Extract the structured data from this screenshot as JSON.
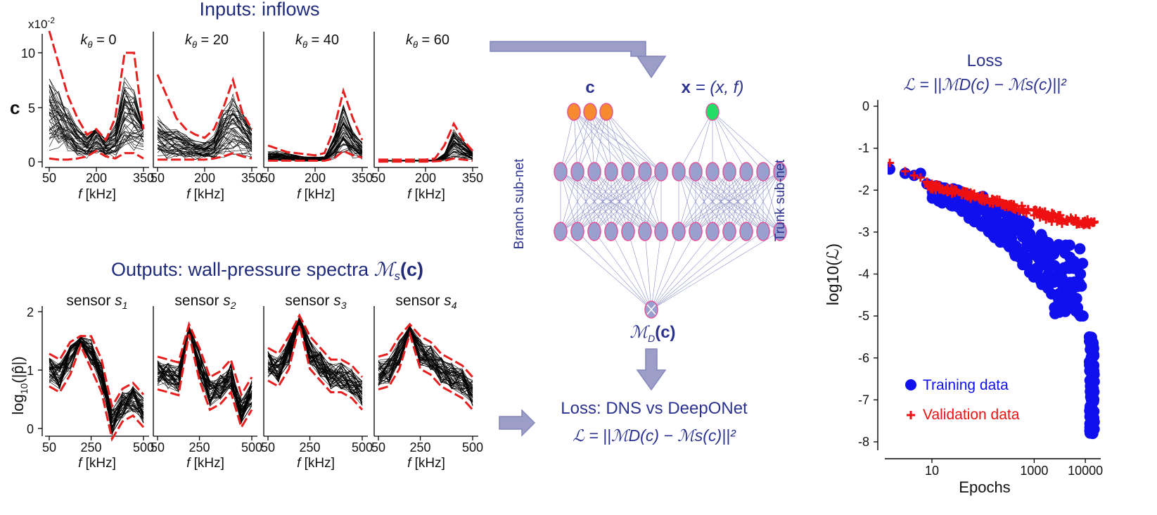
{
  "inputs": {
    "title": "Inputs: inflows",
    "scale_label": "x10",
    "scale_exp": "-2",
    "ylabel": "c",
    "ytick_labels": [
      "0",
      "5",
      "10"
    ],
    "xtick_labels": [
      "50",
      "200",
      "350"
    ],
    "xlabel_var": "f",
    "xlabel_unit": " [kHz]",
    "panels": [
      {
        "k_var": "k",
        "k_sub": "θ",
        "k_val": " = 0"
      },
      {
        "k_var": "k",
        "k_sub": "θ",
        "k_val": " = 20"
      },
      {
        "k_var": "k",
        "k_sub": "θ",
        "k_val": " = 40"
      },
      {
        "k_var": "k",
        "k_sub": "θ",
        "k_val": " = 60"
      }
    ]
  },
  "outputs": {
    "title": "Outputs: wall-pressure spectra ",
    "title_math_M": "ℳ",
    "title_math_sub": "s",
    "title_math_arg": "(c)",
    "ylabel_pre": "log",
    "ylabel_sub": "10",
    "ylabel_arg": "(|p̂|)",
    "ytick_labels": [
      "0",
      "1",
      "2"
    ],
    "xtick_labels": [
      "50",
      "250",
      "500"
    ],
    "xlabel_var": "f",
    "xlabel_unit": " [kHz]",
    "panels": [
      {
        "name": "sensor ",
        "s_var": "s",
        "s_sub": "1"
      },
      {
        "name": "sensor ",
        "s_var": "s",
        "s_sub": "2"
      },
      {
        "name": "sensor ",
        "s_var": "s",
        "s_sub": "3"
      },
      {
        "name": "sensor ",
        "s_var": "s",
        "s_sub": "4"
      }
    ]
  },
  "network": {
    "branch_input_label": "c",
    "trunk_input_label_bold": "x",
    "trunk_input_label_rest": " = (x, f)",
    "branch_label": "Branch sub-net",
    "trunk_label": "Trunk sub-net",
    "output_label_M": "ℳ",
    "output_label_sub": "D",
    "output_label_arg": "(c)",
    "colors": {
      "branch_input": "#f58a2e",
      "trunk_input": "#22dd66",
      "hidden": "#9b9fcf",
      "node_stroke": "#e0559a",
      "edge": "#8a8ec8",
      "arrow": "#9c9ec8"
    }
  },
  "loss_box": {
    "title": "Loss: DNS vs DeepONet",
    "formula": "ℒ = ||ℳD(c) − ℳs(c)||²"
  },
  "loss_chart": {
    "title": "Loss",
    "formula": "ℒ = ||ℳD(c) − ℳs(c)||²",
    "chart_data": {
      "type": "scatter",
      "title": "Loss",
      "xlabel": "Epochs",
      "ylabel": "log10(ℒ)",
      "xscale": "log",
      "xlim": [
        1.2,
        20000
      ],
      "ylim": [
        -8.1,
        0.1
      ],
      "xtick_labels": [
        "10",
        "1000",
        "10000"
      ],
      "ytick_labels": [
        "0",
        "-1",
        "-2",
        "-3",
        "-4",
        "-5",
        "-6",
        "-7",
        "-8"
      ],
      "legend_position": "bottom-left",
      "series": [
        {
          "name": "Training data",
          "marker": "circle",
          "color": "#1010ee",
          "x": [
            1.5,
            3,
            4.5,
            6,
            8,
            12,
            18,
            25,
            35,
            50,
            70,
            100,
            150,
            200,
            300,
            400,
            500,
            700,
            1000,
            1400,
            2000,
            2500,
            3000,
            3500,
            4000,
            4500,
            5000,
            5500,
            6000,
            6500,
            7000,
            7500,
            8000,
            9000,
            3000,
            3500,
            4000,
            5000,
            6000,
            7000,
            8000,
            2500,
            3000,
            4000,
            5000,
            6000,
            7000,
            8000,
            12000,
            12500,
            13000,
            13500,
            14000,
            14500,
            12500,
            13000,
            13500,
            14000,
            12500,
            13000,
            13500,
            14000
          ],
          "y": [
            -1.5,
            -1.6,
            -1.65,
            -1.6,
            -1.85,
            -1.9,
            -1.95,
            -2.0,
            -2.05,
            -2.1,
            -2.2,
            -2.3,
            -2.4,
            -2.5,
            -2.6,
            -2.7,
            -2.85,
            -3.0,
            -3.2,
            -3.4,
            -3.6,
            -3.8,
            -4.0,
            -4.1,
            -4.3,
            -4.4,
            -4.5,
            -4.6,
            -4.7,
            -4.8,
            -4.9,
            -4.95,
            -5.0,
            -5.0,
            -3.3,
            -3.4,
            -3.5,
            -3.6,
            -3.7,
            -3.8,
            -4.0,
            -4.8,
            -4.6,
            -4.4,
            -4.2,
            -4.6,
            -4.3,
            -4.0,
            -5.5,
            -5.8,
            -6.0,
            -6.3,
            -6.6,
            -7.0,
            -7.2,
            -7.4,
            -7.6,
            -7.8,
            -6.8,
            -6.2,
            -5.6,
            -6.9
          ]
        },
        {
          "name": "Validation data",
          "marker": "plus",
          "color": "#ee1111",
          "x": [
            1.5,
            3,
            4.5,
            6,
            8,
            10,
            14,
            20,
            30,
            40,
            60,
            80,
            120,
            160,
            200,
            300,
            400,
            500,
            700,
            1000,
            1300,
            1700,
            2200,
            2800,
            3500,
            4500,
            5500,
            7000,
            9000,
            11000,
            13000,
            15000
          ],
          "y": [
            -1.35,
            -1.55,
            -1.65,
            -1.7,
            -1.8,
            -1.85,
            -1.9,
            -1.95,
            -2.0,
            -2.05,
            -2.1,
            -2.15,
            -2.2,
            -2.25,
            -2.3,
            -2.35,
            -2.45,
            -2.5,
            -2.55,
            -2.6,
            -2.65,
            -2.7,
            -2.75,
            -2.75,
            -2.8,
            -2.75,
            -2.7,
            -2.8,
            -2.75,
            -2.7,
            -2.75,
            -2.75
          ]
        }
      ]
    }
  }
}
